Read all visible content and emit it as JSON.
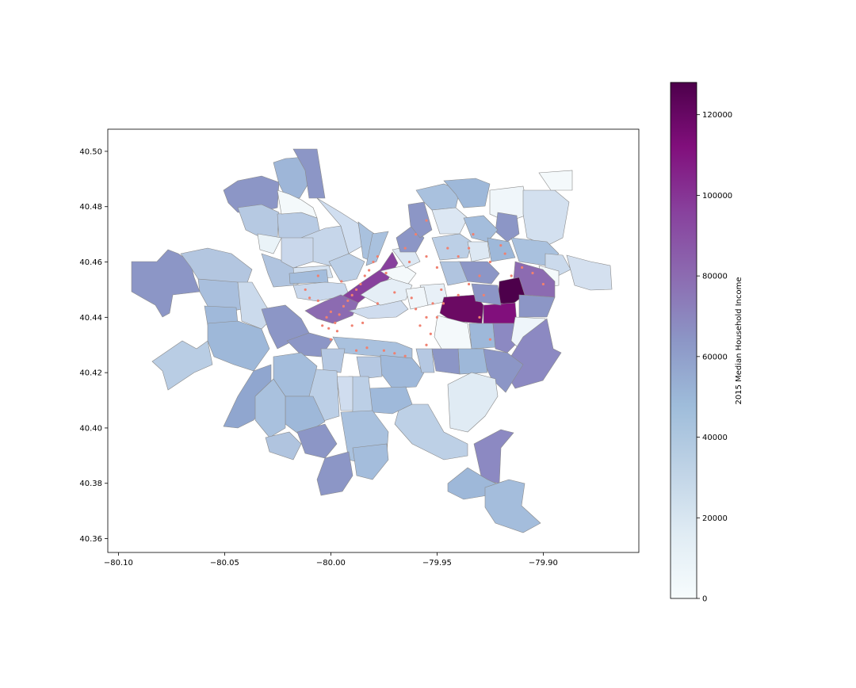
{
  "chart_data": {
    "type": "choropleth-map",
    "x_ticks": [
      -80.1,
      -80.05,
      -80.0,
      -79.95,
      -79.9
    ],
    "x_tick_labels": [
      "−80.10",
      "−80.05",
      "−80.00",
      "−79.95",
      "−79.90"
    ],
    "y_ticks": [
      40.36,
      40.38,
      40.4,
      40.42,
      40.44,
      40.46,
      40.48,
      40.5
    ],
    "y_tick_labels": [
      "40.36",
      "40.38",
      "40.40",
      "40.42",
      "40.44",
      "40.46",
      "40.48",
      "40.50"
    ],
    "xlim": [
      -80.105,
      -79.855
    ],
    "ylim": [
      40.355,
      40.508
    ],
    "colorbar": {
      "label": "2015 Median Household Income",
      "min": 0,
      "max": 128000,
      "ticks": [
        0,
        20000,
        40000,
        60000,
        80000,
        100000,
        120000
      ],
      "tick_labels": [
        "0",
        "20000",
        "40000",
        "60000",
        "80000",
        "100000",
        "120000"
      ],
      "colormap": "BuPu",
      "stops": [
        "#f7fcfd",
        "#e0ecf4",
        "#bfd3e6",
        "#9ebcda",
        "#8c96c6",
        "#8c6bb1",
        "#88419d",
        "#810f7c",
        "#4d004b"
      ]
    },
    "colors": {
      "edge": "#8a8a8a",
      "point": "#f08070"
    },
    "point_markers": [
      [
        -80.002,
        40.44
      ],
      [
        -80.0,
        40.442
      ],
      [
        -79.998,
        40.438
      ],
      [
        -79.996,
        40.441
      ],
      [
        -79.994,
        40.444
      ],
      [
        -79.992,
        40.446
      ],
      [
        -79.99,
        40.448
      ],
      [
        -79.988,
        40.45
      ],
      [
        -79.986,
        40.452
      ],
      [
        -79.984,
        40.455
      ],
      [
        -79.982,
        40.457
      ],
      [
        -79.98,
        40.46
      ],
      [
        -79.978,
        40.462
      ],
      [
        -80.004,
        40.437
      ],
      [
        -80.001,
        40.436
      ],
      [
        -79.997,
        40.435
      ],
      [
        -80.006,
        40.446
      ],
      [
        -80.01,
        40.447
      ],
      [
        -80.012,
        40.45
      ],
      [
        -80.006,
        40.455
      ],
      [
        -79.995,
        40.453
      ],
      [
        -79.978,
        40.445
      ],
      [
        -79.97,
        40.449
      ],
      [
        -79.974,
        40.456
      ],
      [
        -79.965,
        40.465
      ],
      [
        -79.96,
        40.47
      ],
      [
        -79.955,
        40.462
      ],
      [
        -79.95,
        40.458
      ],
      [
        -79.948,
        40.45
      ],
      [
        -79.952,
        40.445
      ],
      [
        -79.955,
        40.44
      ],
      [
        -79.958,
        40.437
      ],
      [
        -79.96,
        40.443
      ],
      [
        -79.962,
        40.447
      ],
      [
        -79.953,
        40.434
      ],
      [
        -79.947,
        40.445
      ],
      [
        -79.95,
        40.44
      ],
      [
        -79.945,
        40.465
      ],
      [
        -79.94,
        40.462
      ],
      [
        -79.935,
        40.465
      ],
      [
        -79.93,
        40.455
      ],
      [
        -79.928,
        40.448
      ],
      [
        -79.925,
        40.46
      ],
      [
        -79.92,
        40.466
      ],
      [
        -79.915,
        40.455
      ],
      [
        -79.91,
        40.458
      ],
      [
        -79.905,
        40.456
      ],
      [
        -79.9,
        40.452
      ],
      [
        -79.925,
        40.432
      ],
      [
        -79.93,
        40.44
      ],
      [
        -79.988,
        40.428
      ],
      [
        -79.983,
        40.429
      ],
      [
        -79.975,
        40.428
      ],
      [
        -79.97,
        40.427
      ],
      [
        -79.965,
        40.426
      ],
      [
        -79.955,
        40.43
      ],
      [
        -79.99,
        40.437
      ],
      [
        -79.985,
        40.438
      ],
      [
        -80.0,
        40.432
      ],
      [
        -79.955,
        40.475
      ],
      [
        -79.963,
        40.46
      ],
      [
        -79.94,
        40.448
      ],
      [
        -79.935,
        40.452
      ],
      [
        -79.918,
        40.463
      ],
      [
        -79.933,
        40.47
      ]
    ]
  }
}
